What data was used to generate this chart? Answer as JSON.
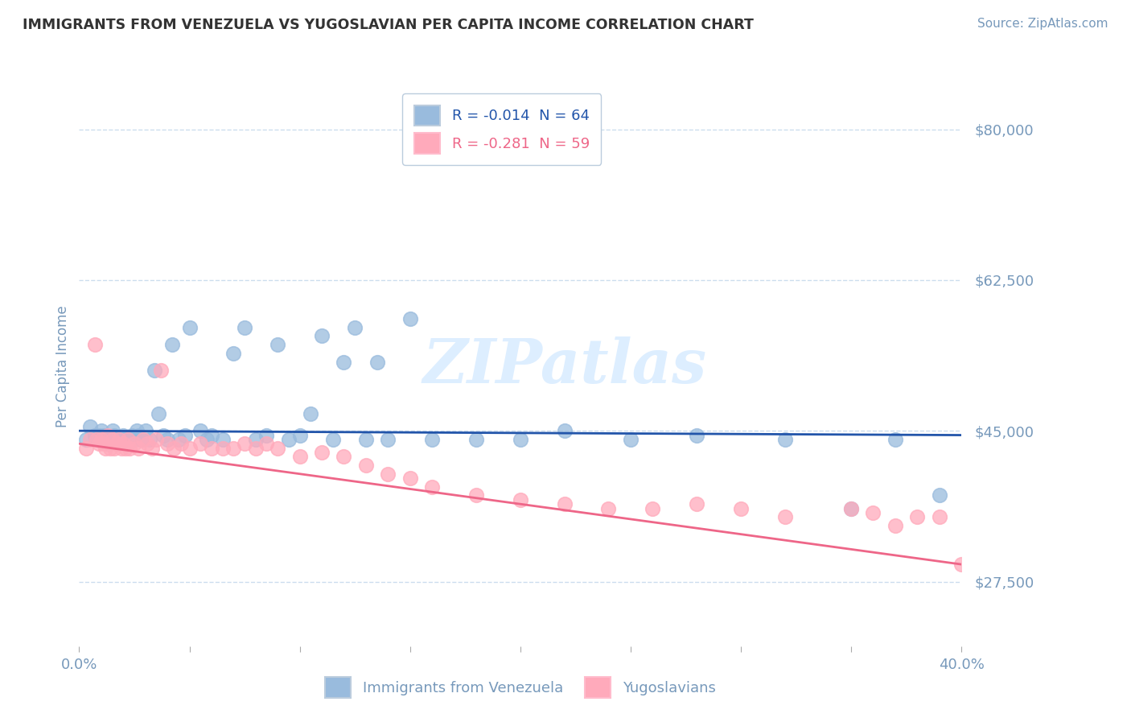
{
  "title": "IMMIGRANTS FROM VENEZUELA VS YUGOSLAVIAN PER CAPITA INCOME CORRELATION CHART",
  "source": "Source: ZipAtlas.com",
  "ylabel": "Per Capita Income",
  "xlim": [
    0.0,
    0.4
  ],
  "ylim": [
    20000,
    85000
  ],
  "yticks": [
    27500,
    45000,
    62500,
    80000
  ],
  "ytick_labels": [
    "$27,500",
    "$45,000",
    "$62,500",
    "$80,000"
  ],
  "xticks": [
    0.0,
    0.05,
    0.1,
    0.15,
    0.2,
    0.25,
    0.3,
    0.35,
    0.4
  ],
  "xtick_labels": [
    "0.0%",
    "",
    "",
    "",
    "",
    "",
    "",
    "",
    "40.0%"
  ],
  "legend_label1": "R = -0.014  N = 64",
  "legend_label2": "R = -0.281  N = 59",
  "legend_entry1": "Immigrants from Venezuela",
  "legend_entry2": "Yugoslavians",
  "blue_color": "#99BBDD",
  "pink_color": "#FFAABB",
  "line_blue": "#2255AA",
  "line_pink": "#EE6688",
  "axis_color": "#7799BB",
  "grid_color": "#CCDDEE",
  "title_color": "#333333",
  "watermark": "ZIPatlas",
  "watermark_color": "#DDEEFF",
  "blue_x": [
    0.003,
    0.005,
    0.007,
    0.008,
    0.009,
    0.01,
    0.011,
    0.012,
    0.013,
    0.014,
    0.015,
    0.016,
    0.017,
    0.018,
    0.019,
    0.02,
    0.021,
    0.022,
    0.023,
    0.024,
    0.025,
    0.026,
    0.027,
    0.028,
    0.03,
    0.032,
    0.034,
    0.036,
    0.038,
    0.04,
    0.042,
    0.045,
    0.048,
    0.05,
    0.055,
    0.058,
    0.06,
    0.065,
    0.07,
    0.075,
    0.08,
    0.085,
    0.09,
    0.095,
    0.1,
    0.105,
    0.11,
    0.115,
    0.12,
    0.125,
    0.13,
    0.135,
    0.14,
    0.15,
    0.16,
    0.18,
    0.2,
    0.22,
    0.25,
    0.28,
    0.32,
    0.35,
    0.37,
    0.39
  ],
  "blue_y": [
    44000,
    45500,
    44500,
    44000,
    44500,
    45000,
    44500,
    44000,
    43500,
    44000,
    45000,
    44500,
    44000,
    43500,
    44000,
    44500,
    44000,
    43500,
    44000,
    44500,
    44000,
    45000,
    44500,
    44000,
    45000,
    44000,
    52000,
    47000,
    44500,
    44000,
    55000,
    44000,
    44500,
    57000,
    45000,
    44000,
    44500,
    44000,
    54000,
    57000,
    44000,
    44500,
    55000,
    44000,
    44500,
    47000,
    56000,
    44000,
    53000,
    57000,
    44000,
    53000,
    44000,
    58000,
    44000,
    44000,
    44000,
    45000,
    44000,
    44500,
    44000,
    36000,
    44000,
    37500
  ],
  "pink_x": [
    0.003,
    0.005,
    0.007,
    0.008,
    0.009,
    0.01,
    0.011,
    0.012,
    0.013,
    0.014,
    0.015,
    0.016,
    0.017,
    0.018,
    0.019,
    0.02,
    0.021,
    0.022,
    0.023,
    0.025,
    0.027,
    0.029,
    0.031,
    0.033,
    0.035,
    0.037,
    0.04,
    0.043,
    0.046,
    0.05,
    0.055,
    0.06,
    0.065,
    0.07,
    0.075,
    0.08,
    0.085,
    0.09,
    0.1,
    0.11,
    0.12,
    0.13,
    0.14,
    0.15,
    0.16,
    0.18,
    0.2,
    0.22,
    0.24,
    0.26,
    0.28,
    0.3,
    0.32,
    0.35,
    0.36,
    0.37,
    0.38,
    0.39,
    0.4
  ],
  "pink_y": [
    43000,
    44000,
    55000,
    44000,
    43500,
    44000,
    43500,
    43000,
    44500,
    43000,
    44000,
    43000,
    43500,
    44000,
    43000,
    43500,
    43000,
    44000,
    43000,
    43500,
    43000,
    44000,
    43500,
    43000,
    44000,
    52000,
    43500,
    43000,
    43500,
    43000,
    43500,
    43000,
    43000,
    43000,
    43500,
    43000,
    43500,
    43000,
    42000,
    42500,
    42000,
    41000,
    40000,
    39500,
    38500,
    37500,
    37000,
    36500,
    36000,
    36000,
    36500,
    36000,
    35000,
    36000,
    35500,
    34000,
    35000,
    35000,
    29500
  ],
  "blue_trend_x": [
    0.0,
    0.4
  ],
  "blue_trend_y": [
    45000,
    44500
  ],
  "pink_trend_x": [
    0.0,
    0.4
  ],
  "pink_trend_y": [
    43500,
    29500
  ],
  "background_color": "#FFFFFF"
}
